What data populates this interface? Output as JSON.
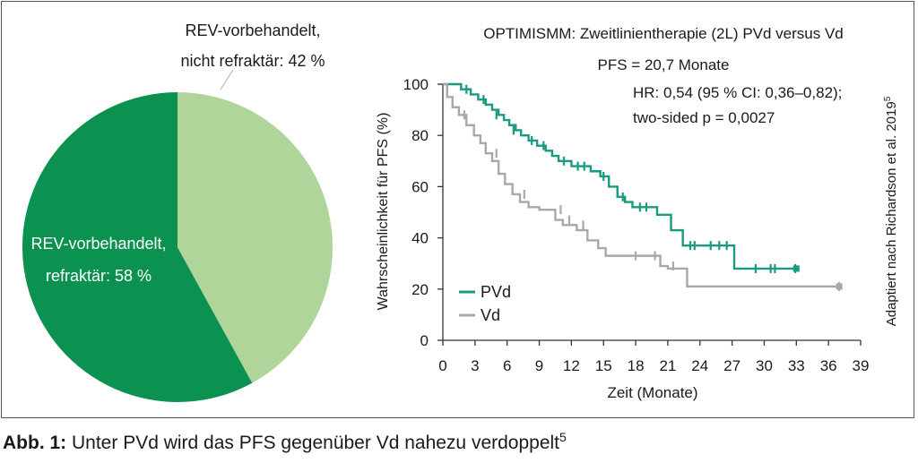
{
  "colors": {
    "pie_refractory": "#0b9150",
    "pie_nonrefractory": "#b0d59a",
    "pvd": "#1a9a80",
    "vd": "#a8a8a8",
    "axis": "#333333"
  },
  "chart_data": [
    {
      "type": "pie",
      "slices": [
        {
          "label_line1": "REV-vorbehandelt,",
          "label_line2": "nicht refraktär: 42 %",
          "value": 42
        },
        {
          "label_line1": "REV-vorbehandelt,",
          "label_line2": "refraktär: 58 %",
          "value": 58
        }
      ]
    },
    {
      "type": "line",
      "title": "OPTIMISMM: Zweitlinientherapie (2L) PVd versus Vd",
      "annotations": {
        "pfs": "PFS = 20,7 Monate",
        "hr": "HR: 0,54 (95 % CI: 0,36–0,82);",
        "p": "two-sided p = 0,0027"
      },
      "xlabel": "Zeit (Monate)",
      "ylabel": "Wahrscheinlichkeit für PFS (%)",
      "xlim": [
        0,
        39
      ],
      "ylim": [
        0,
        100
      ],
      "xticks": [
        "0",
        "3",
        "6",
        "9",
        "12",
        "15",
        "18",
        "21",
        "24",
        "27",
        "30",
        "33",
        "36",
        "39"
      ],
      "yticks": [
        "0",
        "20",
        "40",
        "60",
        "80",
        "100"
      ],
      "legend_position": "bottom-left",
      "series": [
        {
          "name": "PVd",
          "x": [
            0,
            1.7,
            2.6,
            3.3,
            4.0,
            4.6,
            5.2,
            5.7,
            6.2,
            6.8,
            7.3,
            8.0,
            8.8,
            9.6,
            10.2,
            10.8,
            12.0,
            13.8,
            14.7,
            15.5,
            16.3,
            17.0,
            17.7,
            20.0,
            21.3,
            22.4,
            24.5,
            27.2,
            33.0
          ],
          "y": [
            100,
            98,
            96,
            94,
            92,
            90,
            88,
            86,
            84,
            82,
            80,
            78,
            76,
            74,
            72,
            70,
            68,
            66,
            64,
            60,
            56,
            54,
            52,
            49,
            43,
            37,
            37,
            28,
            28
          ],
          "censor_x": [
            2.2,
            3.8,
            5.0,
            6.6,
            8.3,
            9.4,
            11.3,
            12.6,
            13.2,
            15.0,
            16.8,
            18.4,
            19.0,
            23.1,
            23.5,
            25.0,
            25.8,
            26.5,
            29.2,
            30.6,
            31.0,
            32.9
          ],
          "censor_y": [
            98,
            94,
            88,
            82,
            78,
            76,
            70,
            68,
            68,
            64,
            56,
            52,
            52,
            37,
            37,
            37,
            37,
            37,
            28,
            28,
            28,
            28
          ]
        },
        {
          "name": "Vd",
          "x": [
            0,
            0.4,
            0.9,
            1.5,
            2.2,
            2.9,
            3.5,
            4.0,
            4.6,
            5.2,
            5.8,
            6.5,
            7.2,
            8.0,
            9.0,
            10.5,
            11.2,
            12.5,
            13.5,
            14.5,
            15.2,
            20.3,
            21.0,
            22.8,
            37.0
          ],
          "y": [
            100,
            95,
            91,
            88,
            84,
            80,
            77,
            73,
            70,
            65,
            61,
            57,
            54,
            52,
            51,
            47,
            45,
            43,
            39,
            36,
            33,
            29,
            28,
            21,
            21
          ],
          "censor_x": [
            2.0,
            5.0,
            7.6,
            11.0,
            11.8,
            13.1,
            18.0,
            19.8,
            21.5,
            37.0
          ],
          "censor_y": [
            88,
            73,
            57,
            51,
            47,
            45,
            33,
            33,
            29,
            21
          ]
        }
      ]
    }
  ],
  "side_note": {
    "text": "Adaptiert nach Richardson et al. 2019",
    "ref": "5"
  },
  "caption": {
    "label": "Abb. 1:",
    "text": " Unter PVd wird das PFS gegenüber Vd nahezu verdoppelt",
    "ref": "5"
  }
}
